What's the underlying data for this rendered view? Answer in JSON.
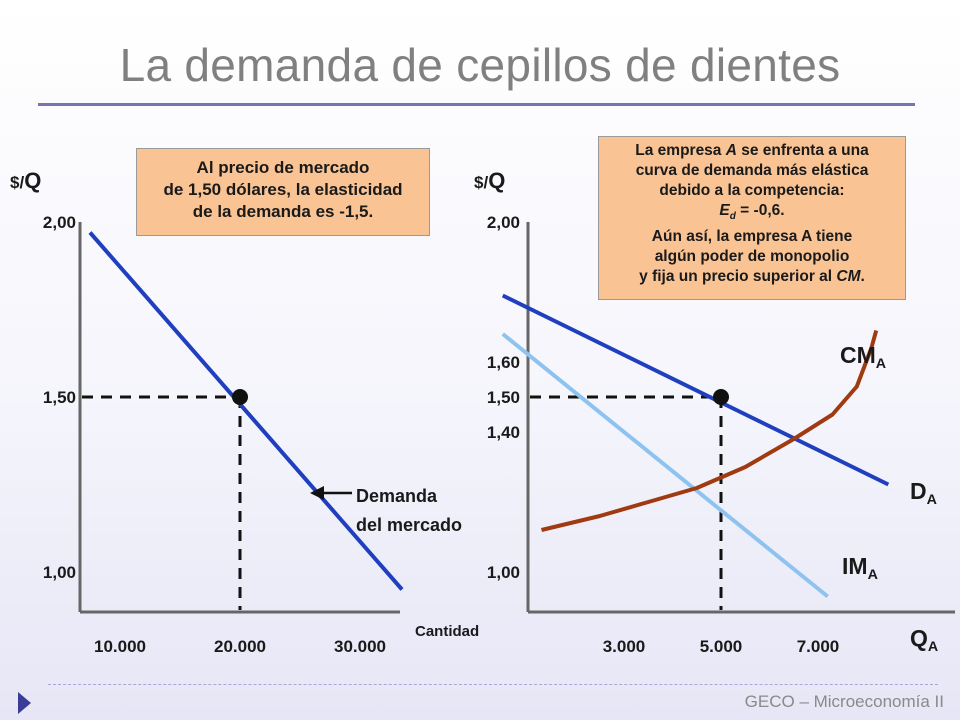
{
  "title": "La demanda de cepillos de dientes",
  "footer": "GECO – Microeconomía II",
  "note_left": {
    "lines": [
      "Al precio de mercado",
      "de 1,50 dólares, la elasticidad",
      "de  la demanda es -1,5."
    ]
  },
  "note_right": {
    "lines": [
      "La empresa A se enfrenta a una",
      "curva de demanda más elástica",
      "debido a la competencia:",
      "E d = -0,6.",
      "Aún así, la empresa A tiene",
      "algún poder de monopolio",
      "y fija un precio superior al CM."
    ]
  },
  "colors": {
    "demand": "#1f3fbf",
    "marginal_revenue": "#8ec3f0",
    "marginal_cost": "#a03a10",
    "note_bg": "#f9c394",
    "title": "#808080"
  },
  "chart_data": [
    {
      "type": "line",
      "ylabel": "$/Q",
      "xlabel": "Cantidad",
      "ylim": [
        0.9,
        2.05
      ],
      "xlim": [
        5000,
        36000
      ],
      "x_ticks": [
        10000,
        20000,
        30000
      ],
      "x_tick_labels": [
        "10.000",
        "20.000",
        "30.000"
      ],
      "y_ticks": [
        1.0,
        1.5,
        2.0
      ],
      "y_tick_labels": [
        "1,00",
        "1,50",
        "2,00"
      ],
      "series": [
        {
          "name": "Demanda del mercado",
          "x": [
            7500,
            33500
          ],
          "y": [
            1.97,
            0.95
          ]
        }
      ],
      "point": {
        "x": 20000,
        "y": 1.5
      },
      "annotation": [
        "Demanda",
        "del mercado"
      ]
    },
    {
      "type": "line",
      "ylabel": "$/Q",
      "xlabel": "QA",
      "ylim": [
        0.9,
        2.05
      ],
      "xlim": [
        0,
        9000
      ],
      "x_ticks": [
        3000,
        5000,
        7000
      ],
      "x_tick_labels": [
        "3.000",
        "5.000",
        "7.000"
      ],
      "y_ticks": [
        1.0,
        1.4,
        1.5,
        1.6,
        2.0
      ],
      "y_tick_labels": [
        "1,00",
        "1,40",
        "1,50",
        "1,60",
        "2,00"
      ],
      "series": [
        {
          "name": "DA",
          "x": [
            500,
            8450
          ],
          "y": [
            1.79,
            1.25
          ]
        },
        {
          "name": "IMA",
          "x": [
            500,
            7200
          ],
          "y": [
            1.68,
            0.93
          ]
        },
        {
          "name": "CMA",
          "x": [
            1300,
            2500,
            3500,
            4500,
            5500,
            6500,
            7300,
            7800,
            8100,
            8200
          ],
          "y": [
            1.12,
            1.16,
            1.2,
            1.24,
            1.3,
            1.38,
            1.45,
            1.53,
            1.64,
            1.69
          ]
        }
      ],
      "series_labels": {
        "CMA": {
          "main": "CM",
          "sub": "A"
        },
        "DA": {
          "main": "D",
          "sub": "A"
        },
        "IMA": {
          "main": "IM",
          "sub": "A"
        },
        "QA": {
          "main": "Q",
          "sub": "A"
        }
      },
      "point": {
        "x": 5000,
        "y": 1.5
      }
    }
  ]
}
